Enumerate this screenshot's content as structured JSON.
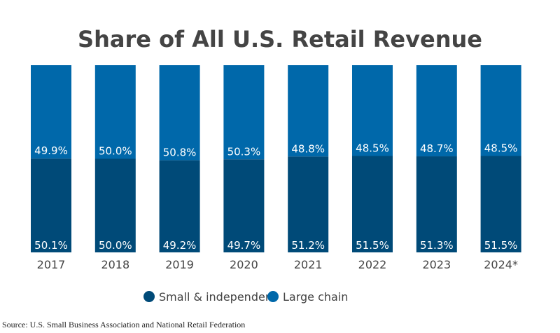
{
  "chart_data": {
    "type": "bar",
    "stacked": true,
    "title": "Share of All U.S. Retail Revenue",
    "categories": [
      "2017",
      "2018",
      "2019",
      "2020",
      "2021",
      "2022",
      "2023",
      "2024*"
    ],
    "series": [
      {
        "name": "Small & independent",
        "color": "#004a78",
        "values": [
          50.1,
          50.0,
          49.2,
          49.7,
          51.2,
          51.5,
          51.3,
          51.5
        ]
      },
      {
        "name": "Large chain",
        "color": "#0068aa",
        "values": [
          49.9,
          50.0,
          50.8,
          50.3,
          48.8,
          48.5,
          48.7,
          48.5
        ]
      }
    ],
    "ylim": [
      0,
      100
    ],
    "value_suffix": "%",
    "grid": false,
    "legend_position": "bottom"
  },
  "source": "Source: U.S. Small Business Association and National Retail Federation"
}
